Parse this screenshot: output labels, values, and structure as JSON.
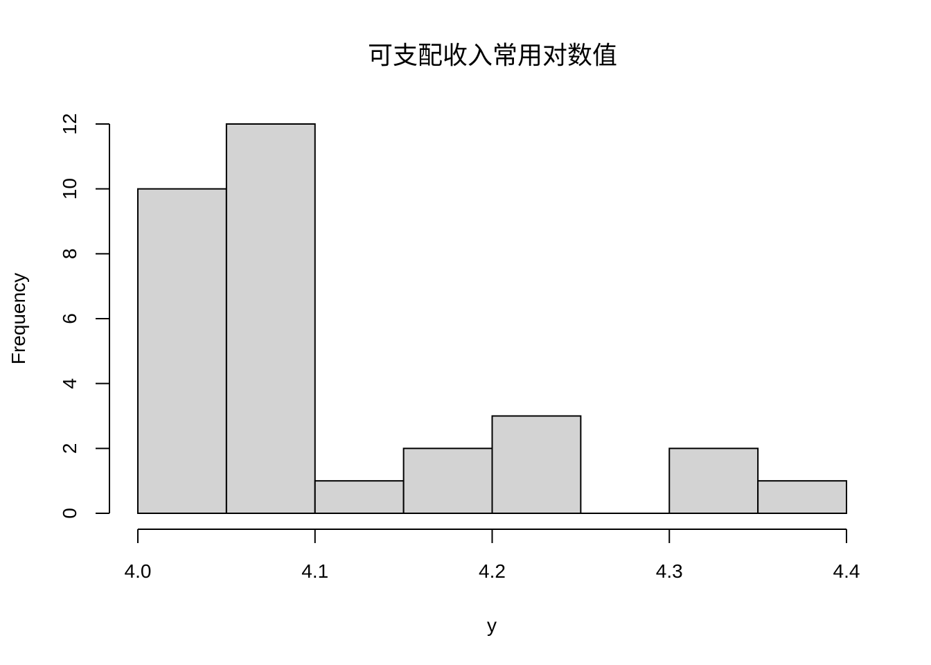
{
  "chart_data": {
    "type": "bar",
    "title": "可支配收入常用对数值",
    "xlabel": "y",
    "ylabel": "Frequency",
    "bins": [
      {
        "start": 4.0,
        "end": 4.05,
        "count": 10
      },
      {
        "start": 4.05,
        "end": 4.1,
        "count": 12
      },
      {
        "start": 4.1,
        "end": 4.15,
        "count": 1
      },
      {
        "start": 4.15,
        "end": 4.2,
        "count": 2
      },
      {
        "start": 4.2,
        "end": 4.25,
        "count": 3
      },
      {
        "start": 4.25,
        "end": 4.3,
        "count": 0
      },
      {
        "start": 4.3,
        "end": 4.35,
        "count": 2
      },
      {
        "start": 4.35,
        "end": 4.4,
        "count": 1
      }
    ],
    "xlim": [
      4.0,
      4.4
    ],
    "ylim": [
      0,
      12
    ],
    "x_ticks": [
      "4.0",
      "4.1",
      "4.2",
      "4.3",
      "4.4"
    ],
    "y_ticks": [
      "0",
      "2",
      "4",
      "6",
      "8",
      "10",
      "12"
    ],
    "grid": false,
    "colors": {
      "bar_fill": "#d3d3d3",
      "bar_stroke": "#000000"
    }
  }
}
